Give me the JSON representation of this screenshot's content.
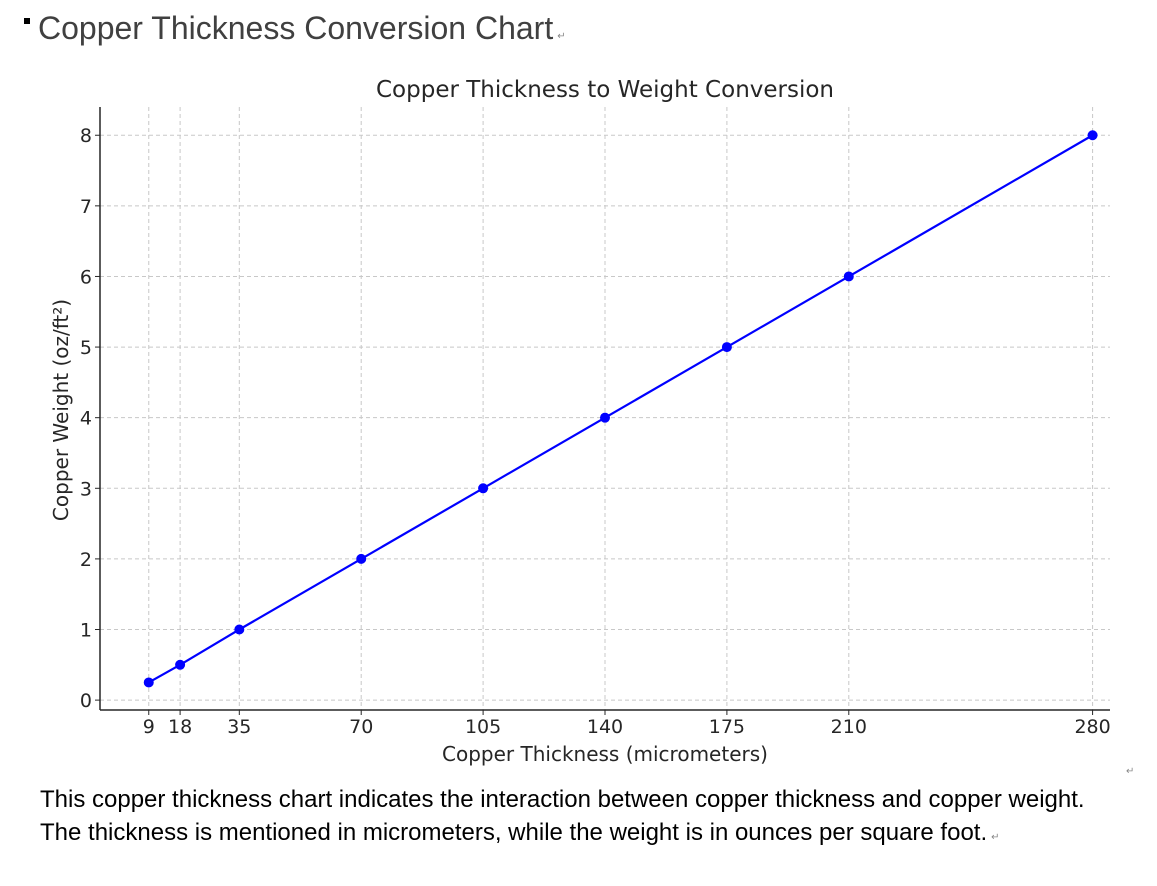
{
  "document": {
    "heading": "Copper Thickness Conversion Chart",
    "paragraph": "This copper thickness chart indicates the interaction between copper thickness and copper weight. The thickness is mentioned in micrometers, while the weight is in ounces per square foot."
  },
  "chart_data": {
    "type": "line",
    "title": "Copper Thickness to Weight Conversion",
    "xlabel": "Copper Thickness (micrometers)",
    "ylabel": "Copper Weight (oz/ft²)",
    "x": [
      9,
      18,
      35,
      70,
      105,
      140,
      175,
      210,
      280
    ],
    "y": [
      0.25,
      0.5,
      1,
      2,
      3,
      4,
      5,
      6,
      8
    ],
    "xticks": [
      "9",
      "18",
      "35",
      "70",
      "105",
      "140",
      "175",
      "210",
      "280"
    ],
    "yticks": [
      "0",
      "1",
      "2",
      "3",
      "4",
      "5",
      "6",
      "7",
      "8"
    ],
    "xlim": [
      -5,
      285
    ],
    "ylim": [
      -0.14,
      8.4
    ],
    "grid": true,
    "markers": true,
    "color": "#0000ff"
  }
}
